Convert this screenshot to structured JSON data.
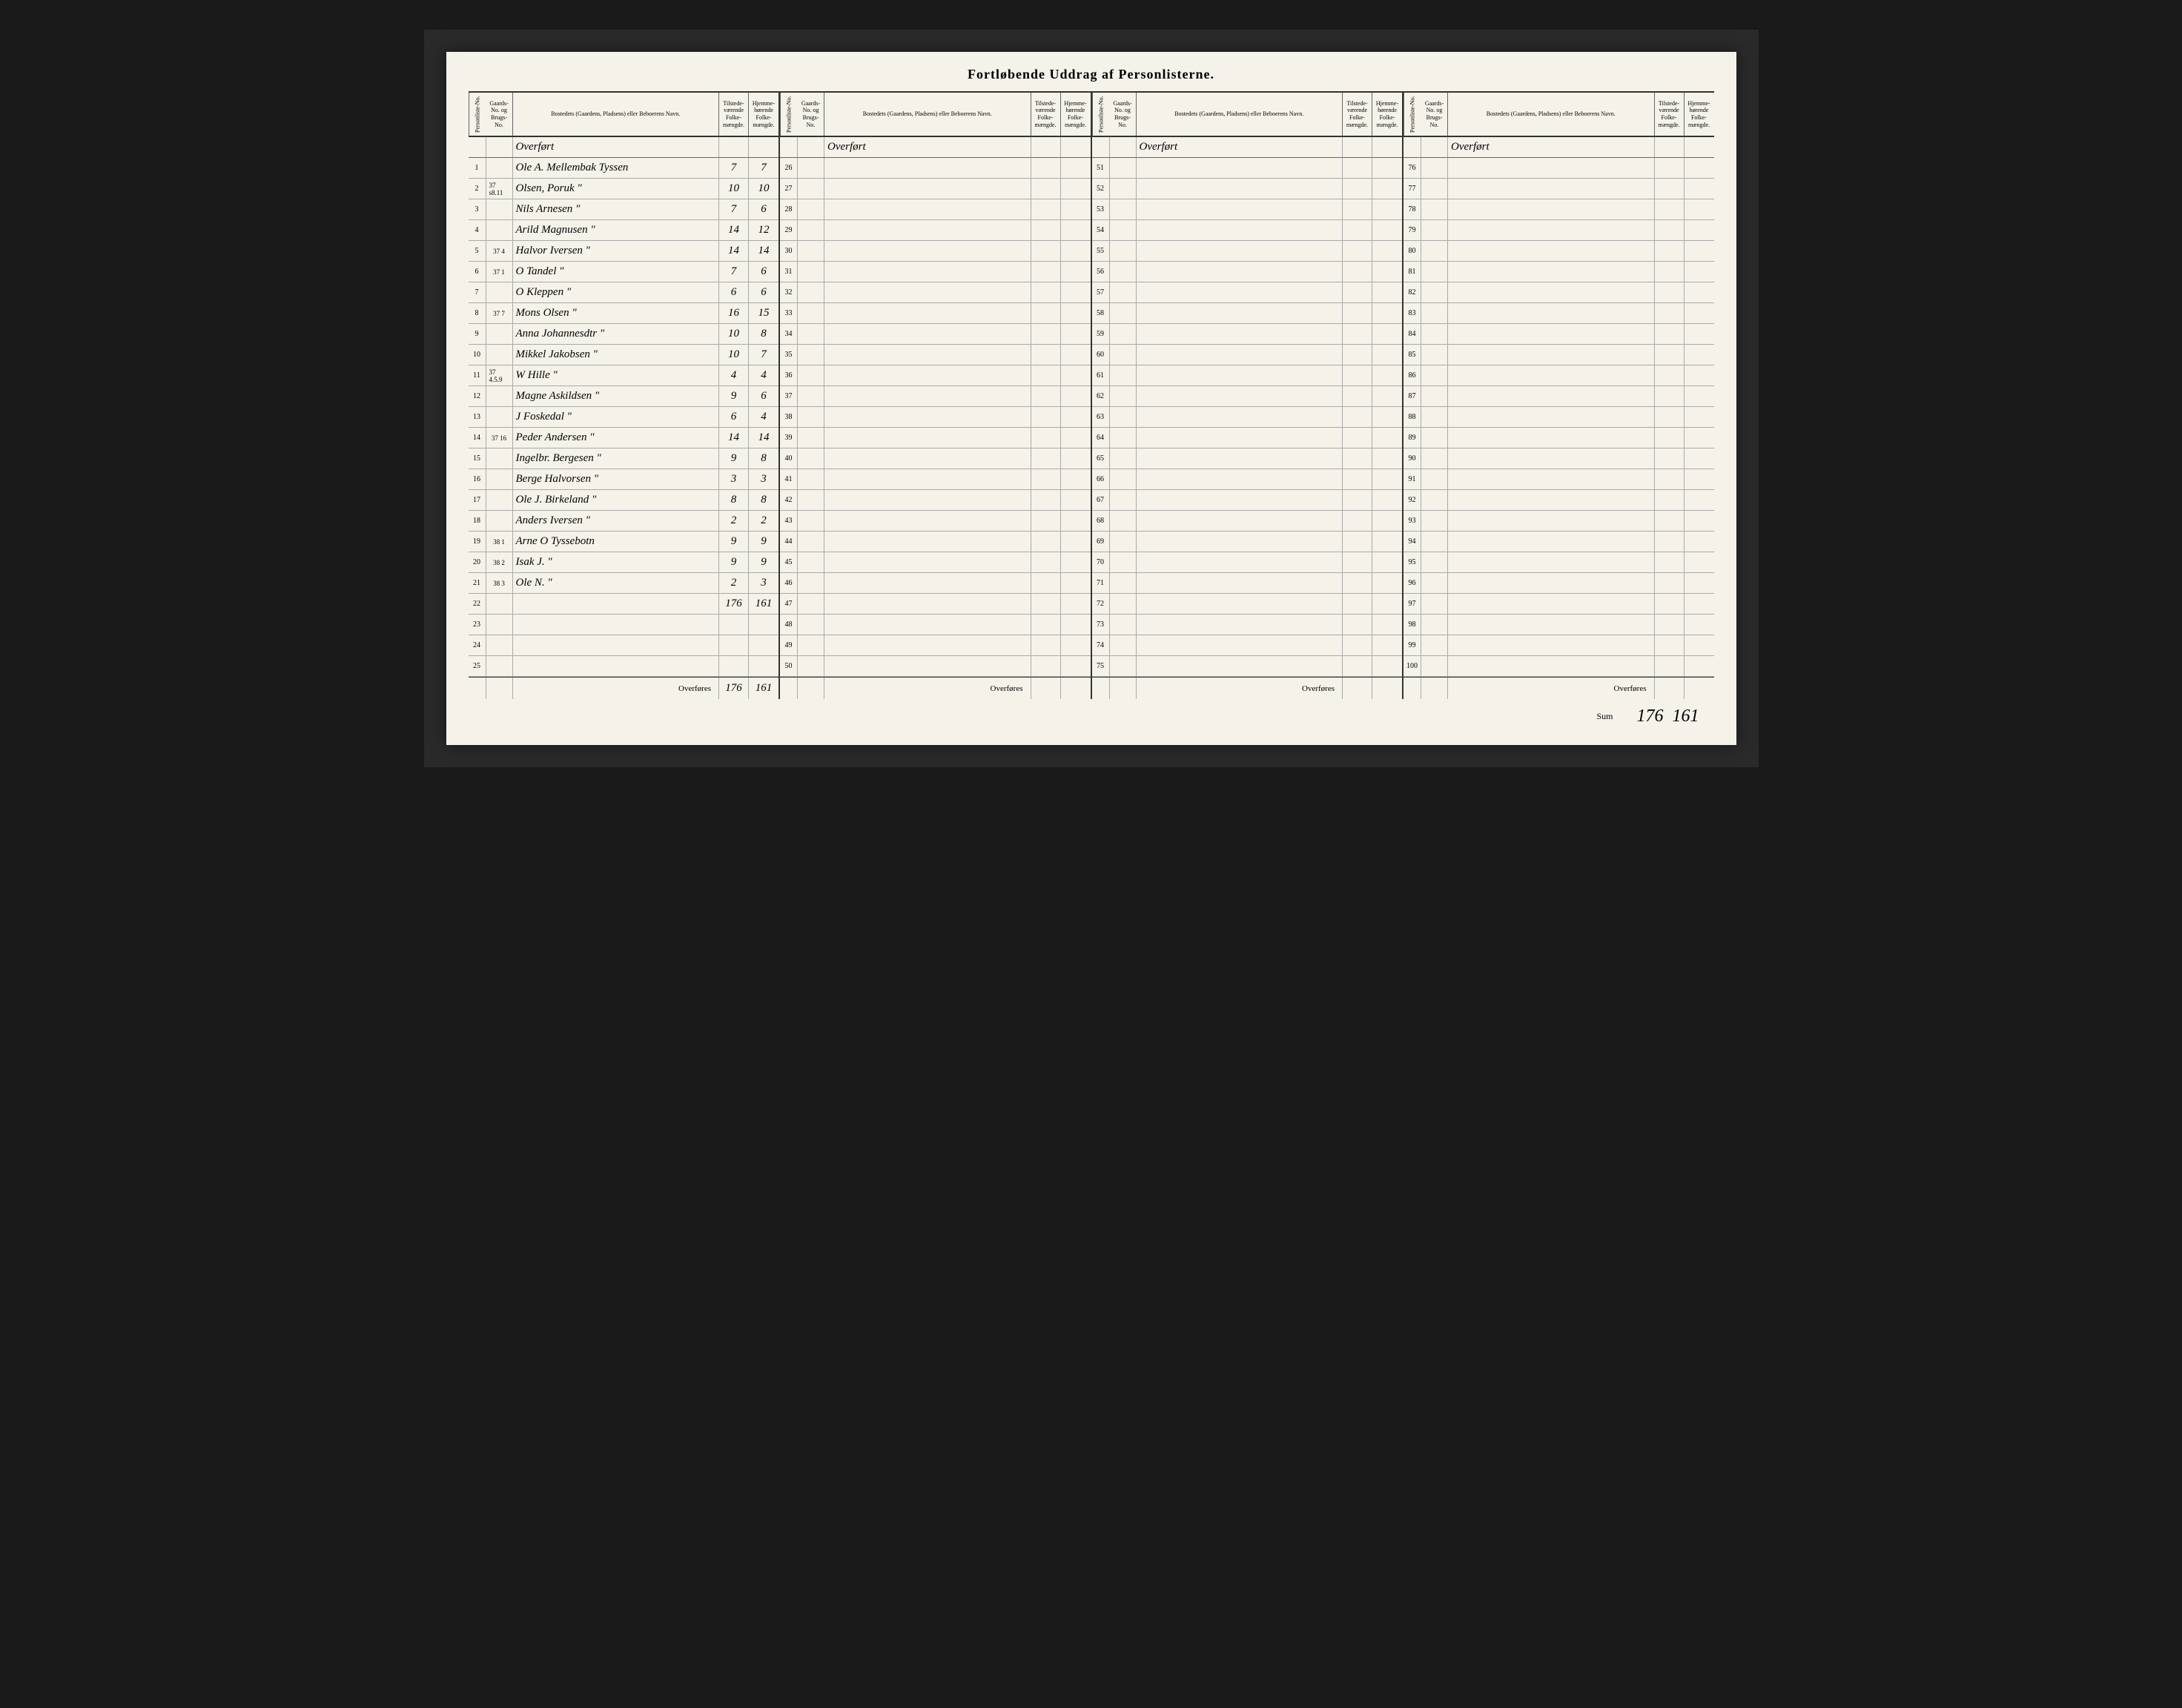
{
  "title": "Fortløbende Uddrag af Personlisterne.",
  "headers": {
    "num": "Personliste-No.",
    "gard": "Gaards-No. og Brugs-No.",
    "name": "Bostedets (Gaardens, Pladsens) eller Beboerens Navn.",
    "folk1": "Tilstede-værende Folke-mængde.",
    "folk2": "Hjemme-hørende Folke-mængde."
  },
  "overfort_label": "Overført",
  "overfores_label": "Overføres",
  "sum_label": "Sum",
  "blocks": [
    {
      "rows": [
        {
          "n": "1",
          "g": "",
          "name": "Ole A. Mellembak Tyssen",
          "f1": "7",
          "f2": "7"
        },
        {
          "n": "2",
          "g": "37 s8.11",
          "name": "Olsen, Poruk \"",
          "f1": "10",
          "f2": "10"
        },
        {
          "n": "3",
          "g": "",
          "name": "Nils Arnesen \"",
          "f1": "7",
          "f2": "6"
        },
        {
          "n": "4",
          "g": "",
          "name": "Arild Magnusen \"",
          "f1": "14",
          "f2": "12"
        },
        {
          "n": "5",
          "g": "37 4",
          "name": "Halvor Iversen \"",
          "f1": "14",
          "f2": "14"
        },
        {
          "n": "6",
          "g": "37 1",
          "name": "O Tandel \"",
          "f1": "7",
          "f2": "6"
        },
        {
          "n": "7",
          "g": "",
          "name": "O Kleppen \"",
          "f1": "6",
          "f2": "6"
        },
        {
          "n": "8",
          "g": "37 7",
          "name": "Mons Olsen \"",
          "f1": "16",
          "f2": "15"
        },
        {
          "n": "9",
          "g": "",
          "name": "Anna Johannesdtr \"",
          "f1": "10",
          "f2": "8"
        },
        {
          "n": "10",
          "g": "",
          "name": "Mikkel Jakobsen \"",
          "f1": "10",
          "f2": "7"
        },
        {
          "n": "11",
          "g": "37 4.5.9",
          "name": "W Hille \"",
          "f1": "4",
          "f2": "4"
        },
        {
          "n": "12",
          "g": "",
          "name": "Magne Askildsen \"",
          "f1": "9",
          "f2": "6"
        },
        {
          "n": "13",
          "g": "",
          "name": "J Foskedal \"",
          "f1": "6",
          "f2": "4"
        },
        {
          "n": "14",
          "g": "37 16",
          "name": "Peder Andersen \"",
          "f1": "14",
          "f2": "14"
        },
        {
          "n": "15",
          "g": "",
          "name": "Ingelbr. Bergesen \"",
          "f1": "9",
          "f2": "8"
        },
        {
          "n": "16",
          "g": "",
          "name": "Berge Halvorsen \"",
          "f1": "3",
          "f2": "3"
        },
        {
          "n": "17",
          "g": "",
          "name": "Ole J. Birkeland \"",
          "f1": "8",
          "f2": "8"
        },
        {
          "n": "18",
          "g": "",
          "name": "Anders Iversen \"",
          "f1": "2",
          "f2": "2"
        },
        {
          "n": "19",
          "g": "38 1",
          "name": "Arne O Tyssebotn",
          "f1": "9",
          "f2": "9"
        },
        {
          "n": "20",
          "g": "38 2",
          "name": "Isak J. \"",
          "f1": "9",
          "f2": "9"
        },
        {
          "n": "21",
          "g": "38 3",
          "name": "Ole N. \"",
          "f1": "2",
          "f2": "3"
        },
        {
          "n": "22",
          "g": "",
          "name": "",
          "f1": "176",
          "f2": "161"
        },
        {
          "n": "23",
          "g": "",
          "name": "",
          "f1": "",
          "f2": ""
        },
        {
          "n": "24",
          "g": "",
          "name": "",
          "f1": "",
          "f2": ""
        },
        {
          "n": "25",
          "g": "",
          "name": "",
          "f1": "",
          "f2": ""
        }
      ],
      "footer": {
        "f1": "176",
        "f2": "161"
      }
    },
    {
      "rows": [
        {
          "n": "26"
        },
        {
          "n": "27"
        },
        {
          "n": "28"
        },
        {
          "n": "29"
        },
        {
          "n": "30"
        },
        {
          "n": "31"
        },
        {
          "n": "32"
        },
        {
          "n": "33"
        },
        {
          "n": "34"
        },
        {
          "n": "35"
        },
        {
          "n": "36"
        },
        {
          "n": "37"
        },
        {
          "n": "38"
        },
        {
          "n": "39"
        },
        {
          "n": "40"
        },
        {
          "n": "41"
        },
        {
          "n": "42"
        },
        {
          "n": "43"
        },
        {
          "n": "44"
        },
        {
          "n": "45"
        },
        {
          "n": "46"
        },
        {
          "n": "47"
        },
        {
          "n": "48"
        },
        {
          "n": "49"
        },
        {
          "n": "50"
        }
      ],
      "footer": {
        "f1": "",
        "f2": ""
      }
    },
    {
      "rows": [
        {
          "n": "51"
        },
        {
          "n": "52"
        },
        {
          "n": "53"
        },
        {
          "n": "54"
        },
        {
          "n": "55"
        },
        {
          "n": "56"
        },
        {
          "n": "57"
        },
        {
          "n": "58"
        },
        {
          "n": "59"
        },
        {
          "n": "60"
        },
        {
          "n": "61"
        },
        {
          "n": "62"
        },
        {
          "n": "63"
        },
        {
          "n": "64"
        },
        {
          "n": "65"
        },
        {
          "n": "66"
        },
        {
          "n": "67"
        },
        {
          "n": "68"
        },
        {
          "n": "69"
        },
        {
          "n": "70"
        },
        {
          "n": "71"
        },
        {
          "n": "72"
        },
        {
          "n": "73"
        },
        {
          "n": "74"
        },
        {
          "n": "75"
        }
      ],
      "footer": {
        "f1": "",
        "f2": ""
      }
    },
    {
      "rows": [
        {
          "n": "76"
        },
        {
          "n": "77"
        },
        {
          "n": "78"
        },
        {
          "n": "79"
        },
        {
          "n": "80"
        },
        {
          "n": "81"
        },
        {
          "n": "82"
        },
        {
          "n": "83"
        },
        {
          "n": "84"
        },
        {
          "n": "85"
        },
        {
          "n": "86"
        },
        {
          "n": "87"
        },
        {
          "n": "88"
        },
        {
          "n": "89"
        },
        {
          "n": "90"
        },
        {
          "n": "91"
        },
        {
          "n": "92"
        },
        {
          "n": "93"
        },
        {
          "n": "94"
        },
        {
          "n": "95"
        },
        {
          "n": "96"
        },
        {
          "n": "97"
        },
        {
          "n": "98"
        },
        {
          "n": "99"
        },
        {
          "n": "100"
        }
      ],
      "footer": {
        "f1": "",
        "f2": ""
      }
    }
  ],
  "grand_sum": {
    "f1": "176",
    "f2": "161"
  }
}
